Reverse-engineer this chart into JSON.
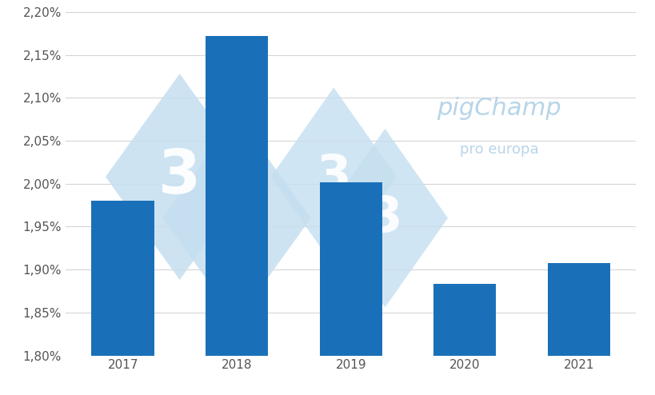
{
  "categories": [
    "2017",
    "2018",
    "2019",
    "2020",
    "2021"
  ],
  "values": [
    0.0198,
    0.02172,
    0.02002,
    0.01883,
    0.01908
  ],
  "bar_color": "#1a70b8",
  "ylim": [
    0.018,
    0.022
  ],
  "yticks": [
    0.018,
    0.0185,
    0.019,
    0.0195,
    0.02,
    0.0205,
    0.021,
    0.0215,
    0.022
  ],
  "ytick_labels": [
    "1,80%",
    "1,85%",
    "1,90%",
    "1,95%",
    "2,00%",
    "2,05%",
    "2,10%",
    "2,15%",
    "2,20%"
  ],
  "background_color": "#ffffff",
  "grid_color": "#d5d5d5",
  "bar_width": 0.55,
  "tick_fontsize": 11,
  "xlabel_fontsize": 11,
  "watermark_color": "#c5dff0",
  "pigchamp_color": "#b8d5e8"
}
